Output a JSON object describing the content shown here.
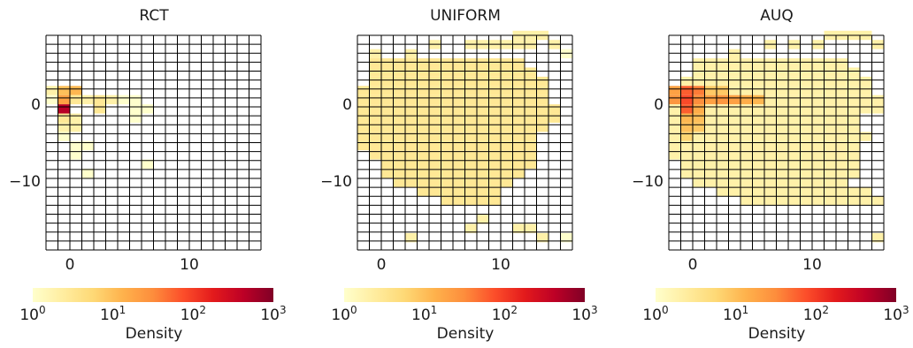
{
  "chart_data": [
    {
      "type": "heatmap",
      "title": "RCT",
      "xlim": [
        -2,
        16
      ],
      "ylim": [
        -19,
        9
      ],
      "cell_size": [
        1.0,
        1.2
      ],
      "xticks": [
        0,
        10
      ],
      "yticks": [
        0,
        -10
      ],
      "scale": "log",
      "colorbar": {
        "label": "Density",
        "ticks": [
          "10^0",
          "10^1",
          "10^2",
          "10^3"
        ],
        "range": [
          1,
          1000
        ]
      },
      "cells": [
        [
          -2,
          1.2,
          2
        ],
        [
          -2,
          0,
          1
        ],
        [
          -1,
          1.2,
          10
        ],
        [
          -1,
          0,
          20
        ],
        [
          0,
          1.2,
          12
        ],
        [
          0,
          0,
          3
        ],
        [
          -1,
          -1.2,
          450
        ],
        [
          -1,
          -2.4,
          3
        ],
        [
          -1,
          -3.6,
          2
        ],
        [
          0,
          -2.4,
          2
        ],
        [
          0,
          -3.6,
          2
        ],
        [
          -1,
          -4.8,
          1
        ],
        [
          1,
          0,
          2
        ],
        [
          2,
          0,
          3
        ],
        [
          2,
          -1.2,
          3
        ],
        [
          3,
          0,
          2
        ],
        [
          4,
          0,
          1
        ],
        [
          5,
          0,
          1
        ],
        [
          5,
          -1.2,
          1
        ],
        [
          6,
          -1.2,
          1
        ],
        [
          5,
          -2.4,
          1
        ],
        [
          0,
          -6,
          1
        ],
        [
          1,
          -6,
          1
        ],
        [
          0,
          -7.2,
          1
        ],
        [
          1,
          -9.6,
          1
        ],
        [
          6,
          -8.4,
          1
        ]
      ]
    },
    {
      "type": "heatmap",
      "title": "UNIFORM",
      "xlim": [
        -2,
        16
      ],
      "ylim": [
        -19,
        9
      ],
      "cell_size": [
        1.0,
        1.2
      ],
      "xticks": [
        0,
        10
      ],
      "yticks": [
        0,
        -10
      ],
      "scale": "log",
      "colorbar": {
        "label": "Density",
        "ticks": [
          "10^0",
          "10^1",
          "10^2",
          "10^3"
        ],
        "range": [
          1,
          1000
        ]
      },
      "region": {
        "rows": [
          [
            -1,
            11
          ],
          [
            -1,
            12
          ],
          [
            -1,
            13
          ],
          [
            -2,
            13
          ],
          [
            -2,
            13
          ],
          [
            -2,
            14
          ],
          [
            -2,
            14
          ],
          [
            -2,
            13
          ],
          [
            -2,
            12
          ],
          [
            -2,
            12
          ],
          [
            -1,
            12
          ],
          [
            0,
            12
          ],
          [
            0,
            11
          ],
          [
            1,
            10
          ],
          [
            3,
            9
          ],
          [
            5,
            9
          ]
        ],
        "top_y": 4.8,
        "base_density": 3
      },
      "cells": [
        [
          2,
          6,
          2
        ],
        [
          7,
          7.2,
          2
        ],
        [
          8,
          7.2,
          2
        ],
        [
          9,
          7.2,
          2
        ],
        [
          10,
          7.2,
          2
        ],
        [
          11,
          8.4,
          2
        ],
        [
          12,
          8.4,
          2
        ],
        [
          13,
          8.4,
          2
        ],
        [
          -1,
          6,
          2
        ],
        [
          4,
          7.2,
          2
        ],
        [
          11,
          7.2,
          2
        ],
        [
          12,
          7.2,
          2
        ],
        [
          14,
          7.2,
          2
        ],
        [
          15,
          6,
          1
        ],
        [
          2,
          -18,
          2
        ],
        [
          7,
          -16.8,
          2
        ],
        [
          8,
          -15.6,
          2
        ],
        [
          11,
          -16.8,
          2
        ],
        [
          12,
          -16.8,
          2
        ],
        [
          13,
          -18,
          2
        ],
        [
          15,
          -18,
          1
        ]
      ]
    },
    {
      "type": "heatmap",
      "title": "AUQ",
      "xlim": [
        -2,
        16
      ],
      "ylim": [
        -19,
        9
      ],
      "cell_size": [
        1.0,
        1.2
      ],
      "xticks": [
        0,
        10
      ],
      "yticks": [
        0,
        -10
      ],
      "scale": "log",
      "colorbar": {
        "label": "Density",
        "ticks": [
          "10^0",
          "10^1",
          "10^2",
          "10^3"
        ],
        "range": [
          1,
          1000
        ]
      },
      "region": {
        "rows": [
          [
            0,
            12
          ],
          [
            0,
            13
          ],
          [
            -1,
            14
          ],
          [
            -2,
            14
          ],
          [
            -2,
            15
          ],
          [
            -2,
            15
          ],
          [
            -2,
            13
          ],
          [
            -2,
            13
          ],
          [
            -2,
            14
          ],
          [
            -2,
            13
          ],
          [
            -2,
            13
          ],
          [
            -1,
            13
          ],
          [
            -1,
            13
          ],
          [
            0,
            12
          ],
          [
            2,
            14
          ],
          [
            4,
            15
          ]
        ],
        "top_y": 4.8,
        "base_density": 2
      },
      "cells": [
        [
          6,
          7.2,
          2
        ],
        [
          8,
          7.2,
          2
        ],
        [
          10,
          7.2,
          2
        ],
        [
          11,
          8.4,
          2
        ],
        [
          12,
          8.4,
          2
        ],
        [
          13,
          8.4,
          2
        ],
        [
          14,
          8.4,
          2
        ],
        [
          15,
          7.2,
          2
        ],
        [
          3,
          6,
          2
        ],
        [
          15,
          -18,
          2
        ],
        [
          -2,
          1.2,
          20
        ],
        [
          -1,
          1.2,
          60
        ],
        [
          0,
          1.2,
          40
        ],
        [
          -2,
          0,
          25
        ],
        [
          -1,
          0,
          80
        ],
        [
          0,
          0,
          30
        ],
        [
          -1,
          -1.2,
          60
        ],
        [
          0,
          -1.2,
          15
        ],
        [
          1,
          0,
          20
        ],
        [
          2,
          0,
          25
        ],
        [
          3,
          0,
          20
        ],
        [
          4,
          0,
          15
        ],
        [
          5,
          0,
          12
        ],
        [
          1,
          1.2,
          8
        ],
        [
          2,
          1.2,
          8
        ],
        [
          -1,
          -2.4,
          12
        ],
        [
          0,
          -2.4,
          10
        ],
        [
          -1,
          -3.6,
          10
        ],
        [
          0,
          -3.6,
          8
        ],
        [
          -1,
          -4.8,
          6
        ]
      ]
    }
  ]
}
